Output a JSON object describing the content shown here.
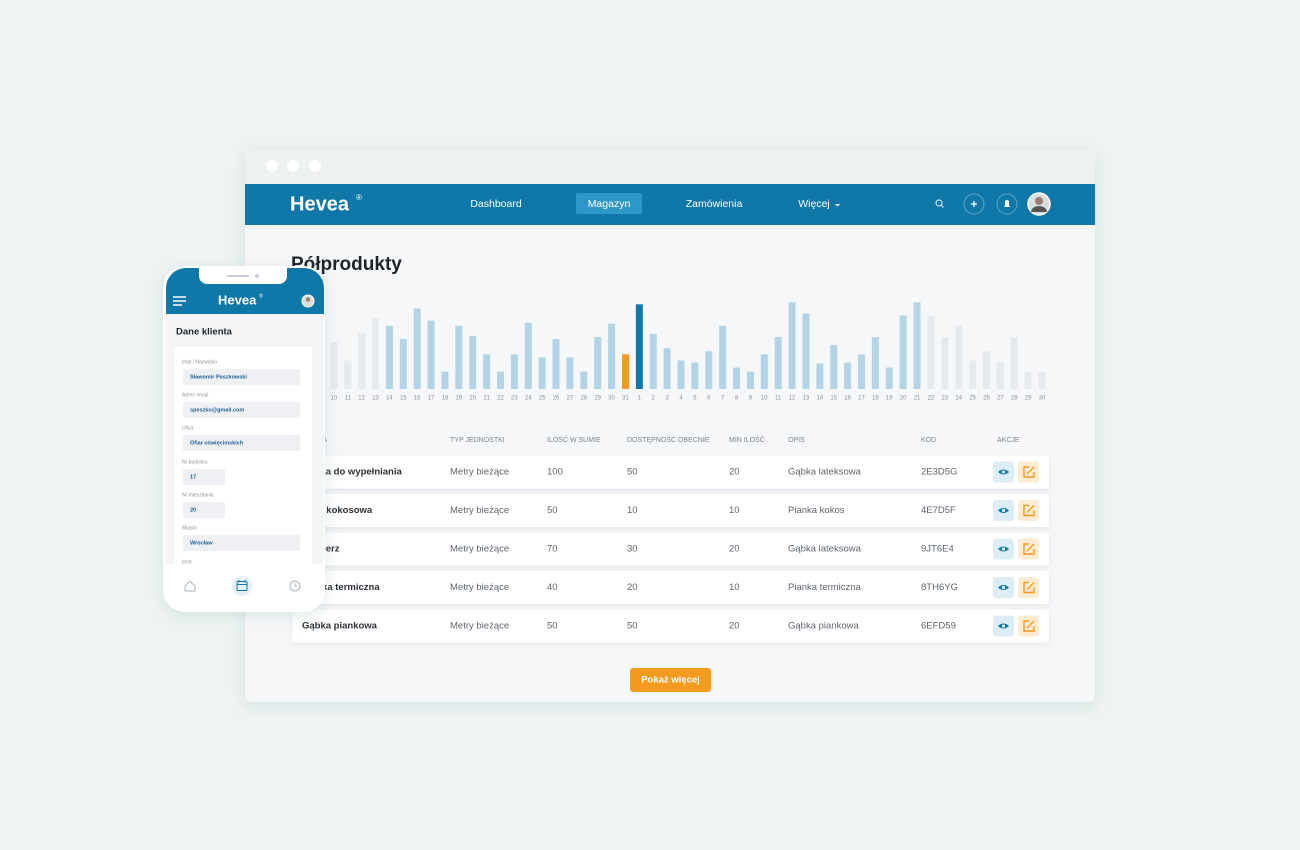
{
  "window": {
    "nav": {
      "logo": "Hevea",
      "logo_mark": "®",
      "items": [
        "Dashboard",
        "Magazyn",
        "Zamówienia",
        "Więcej"
      ],
      "active": 1
    }
  },
  "chart_data": {
    "type": "bar",
    "title": "Półprodukty",
    "categories": [
      "9",
      "10",
      "11",
      "12",
      "13",
      "14",
      "15",
      "16",
      "17",
      "18",
      "19",
      "20",
      "21",
      "22",
      "23",
      "24",
      "25",
      "26",
      "27",
      "28",
      "29",
      "30",
      "31",
      "1",
      "2",
      "3",
      "4",
      "5",
      "6",
      "7",
      "8",
      "9",
      "10",
      "11",
      "12",
      "13",
      "14",
      "15",
      "16",
      "17",
      "18",
      "19",
      "20",
      "21",
      "22",
      "23",
      "24",
      "25",
      "26",
      "27",
      "28",
      "29",
      "30"
    ],
    "values": [
      49,
      46,
      28,
      55,
      69,
      62,
      49,
      79,
      67,
      17,
      62,
      52,
      34,
      17,
      34,
      65,
      31,
      49,
      31,
      17,
      51,
      64,
      34,
      83,
      54,
      40,
      28,
      26,
      37,
      62,
      21,
      17,
      34,
      51,
      85,
      74,
      25,
      43,
      26,
      34,
      51,
      21,
      72,
      85,
      72,
      51,
      62,
      28,
      37,
      26,
      51,
      17,
      17
    ],
    "colors": [
      "#e6e9ed",
      "#e6e9ed",
      "#e6e9ed",
      "#e6e9ed",
      "#e6e9ed",
      "#b3d4e6",
      "#b3d4e6",
      "#b3d4e6",
      "#b3d4e6",
      "#b3d4e6",
      "#b3d4e6",
      "#b3d4e6",
      "#b3d4e6",
      "#b3d4e6",
      "#b3d4e6",
      "#b3d4e6",
      "#b3d4e6",
      "#b3d4e6",
      "#b3d4e6",
      "#b3d4e6",
      "#b3d4e6",
      "#b3d4e6",
      "#f39a1f",
      "#0f78a8",
      "#b3d4e6",
      "#b3d4e6",
      "#b3d4e6",
      "#b3d4e6",
      "#b3d4e6",
      "#b3d4e6",
      "#b3d4e6",
      "#b3d4e6",
      "#b3d4e6",
      "#b3d4e6",
      "#b3d4e6",
      "#b3d4e6",
      "#b3d4e6",
      "#b3d4e6",
      "#b3d4e6",
      "#b3d4e6",
      "#b3d4e6",
      "#b3d4e6",
      "#b3d4e6",
      "#b3d4e6",
      "#e6e9ed",
      "#e6e9ed",
      "#e6e9ed",
      "#e6e9ed",
      "#e6e9ed",
      "#e6e9ed",
      "#e6e9ed",
      "#e6e9ed",
      "#e6e9ed"
    ],
    "ylim": [
      0,
      100
    ]
  },
  "table": {
    "columns": [
      "NAZWA",
      "TYP JEDNOSTKI",
      "ILOŚĆ W SUMIE",
      "DOSTĘPNOŚĆ OBECNIE",
      "MIN ILOŚĆ",
      "OPIS",
      "KOD",
      "AKCJE"
    ],
    "rows": [
      [
        "Gąbka do wypełniania",
        "Metry bieżące",
        "100",
        "50",
        "20",
        "Gąbka lateksowa",
        "2E3D5G"
      ],
      [
        "Mata kokosowa",
        "Metry bieżące",
        "50",
        "10",
        "10",
        "Pianka kokos",
        "4E7D5F"
      ],
      [
        "Kołnierz",
        "Metry bieżące",
        "70",
        "30",
        "20",
        "Gąbka lateksowa",
        "9JT6E4"
      ],
      [
        "Pianka termiczna",
        "Metry bieżące",
        "40",
        "20",
        "10",
        "Pianka termiczna",
        "8TH6YG"
      ],
      [
        "Gąbka piankowa",
        "Metry bieżące",
        "50",
        "50",
        "20",
        "Gąbka piankowa",
        "6EFD59"
      ]
    ]
  },
  "button": "Pokaż więcej",
  "phone": {
    "logo": "Hevea",
    "logo_mark": "®",
    "title": "Dane klienta",
    "fields": [
      {
        "label": "Imię i Nazwisko",
        "value": "Sławomir Paszkowski"
      },
      {
        "label": "Adres email",
        "value": "speszko@gmail.com"
      },
      {
        "label": "Ulica",
        "value": "Ofiar oświęcimskich"
      },
      {
        "label": "Nr budynku",
        "value": "17"
      },
      {
        "label": "Nr mieszkania",
        "value": "20"
      },
      {
        "label": "Miasto",
        "value": "Wrocław"
      }
    ],
    "extra_label": "Inne"
  }
}
